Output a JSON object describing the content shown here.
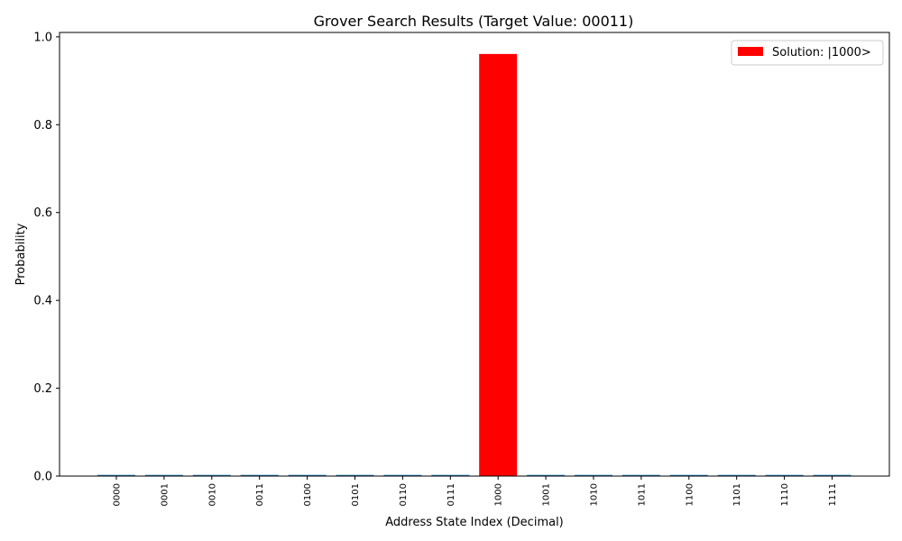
{
  "chart_data": {
    "type": "bar",
    "title": "Grover Search Results (Target Value: 00011)",
    "xlabel": "Address State Index (Decimal)",
    "ylabel": "Probability",
    "ylim": [
      0,
      1.01
    ],
    "yticks": [
      "0.0",
      "0.2",
      "0.4",
      "0.6",
      "0.8",
      "1.0"
    ],
    "categories": [
      "0000",
      "0001",
      "0010",
      "0011",
      "0100",
      "0101",
      "0110",
      "0111",
      "1000",
      "1001",
      "1010",
      "1011",
      "1100",
      "1101",
      "1110",
      "1111"
    ],
    "values": [
      0.0027,
      0.0027,
      0.0027,
      0.0027,
      0.0027,
      0.0027,
      0.0027,
      0.0027,
      0.961,
      0.0027,
      0.0027,
      0.0027,
      0.0027,
      0.0027,
      0.0027,
      0.0027
    ],
    "highlight_index": 8,
    "colors": {
      "default": "#1f77b4",
      "highlight": "#ff0000"
    },
    "legend": {
      "label": "Solution: |1000>",
      "placement": "top-right"
    },
    "grid": false
  }
}
